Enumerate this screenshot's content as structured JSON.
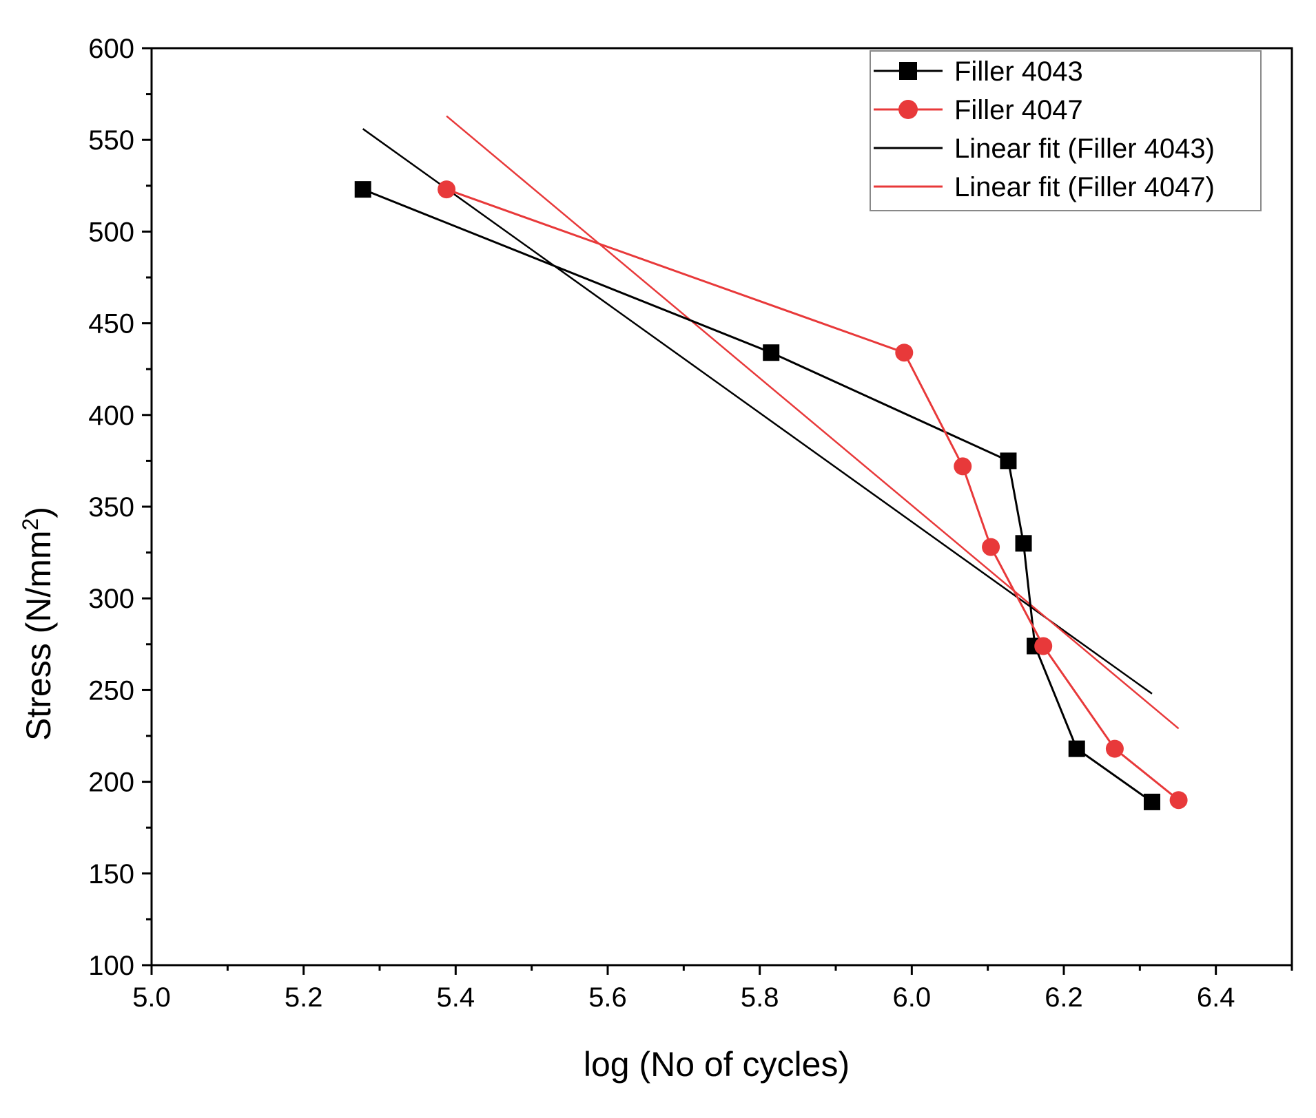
{
  "chart_data": {
    "type": "line",
    "title": "",
    "xlabel": "log (No of cycles)",
    "ylabel": {
      "base": "Stress (N/mm",
      "superscript": "2",
      "suffix": ")"
    },
    "xlim": [
      5.0,
      6.5
    ],
    "ylim": [
      100,
      600
    ],
    "x_ticks": [
      5.0,
      5.2,
      5.4,
      5.6,
      5.8,
      6.0,
      6.2,
      6.4
    ],
    "x_tick_labels": [
      "5.0",
      "5.2",
      "5.4",
      "5.6",
      "5.8",
      "6.0",
      "6.2",
      "6.4"
    ],
    "x_minor_step": 0.1,
    "y_ticks": [
      100,
      150,
      200,
      250,
      300,
      350,
      400,
      450,
      500,
      550,
      600
    ],
    "y_tick_labels": [
      "100",
      "150",
      "200",
      "250",
      "300",
      "350",
      "400",
      "450",
      "500",
      "550",
      "600"
    ],
    "y_minor_step": 25,
    "grid": false,
    "legend_position": "top-right",
    "series": [
      {
        "name": "Filler 4043",
        "kind": "line-marker",
        "marker": "square",
        "color": "#000000",
        "x": [
          5.278,
          5.815,
          6.127,
          6.147,
          6.162,
          6.217,
          6.316
        ],
        "y": [
          523,
          434,
          375,
          330,
          274,
          218,
          189
        ]
      },
      {
        "name": "Filler 4047",
        "kind": "line-marker",
        "marker": "circle",
        "color": "#e8393a",
        "x": [
          5.388,
          5.99,
          6.067,
          6.104,
          6.173,
          6.267,
          6.351
        ],
        "y": [
          523,
          434,
          372,
          328,
          274,
          218,
          190
        ]
      },
      {
        "name": "Linear fit (Filler 4043)",
        "kind": "line",
        "color": "#000000",
        "x": [
          5.278,
          6.316
        ],
        "y": [
          556,
          248
        ]
      },
      {
        "name": "Linear fit (Filler 4047)",
        "kind": "line",
        "color": "#e8393a",
        "x": [
          5.388,
          6.351
        ],
        "y": [
          563,
          229
        ]
      }
    ]
  }
}
